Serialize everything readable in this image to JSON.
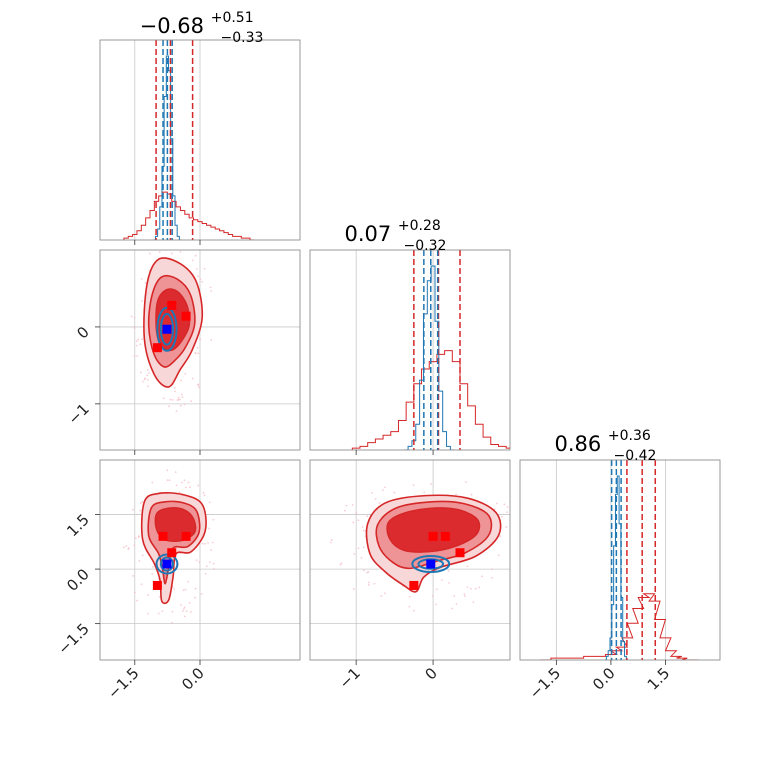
{
  "colors": {
    "red": "#d62728",
    "blue": "#1f77b4",
    "marker_red": "#ff0000",
    "marker_blue": "#0000ff",
    "red_levels": [
      "#f8d7d8",
      "#ee9496",
      "#dc2b2e"
    ]
  },
  "chart_data": {
    "type": "corner",
    "parameters": [
      {
        "title": {
          "main": "−0.68",
          "sup": "+0.51",
          "sub": "−0.33"
        },
        "range": [
          -2.3,
          2.3
        ],
        "ticks": [
          -1.5,
          0.0
        ],
        "tick_labels": [
          "−1.5",
          "0.0"
        ],
        "red_quantiles": [
          -1.01,
          -0.68,
          -0.17
        ],
        "blue_quantiles": [
          -0.85,
          -0.75,
          -0.64
        ],
        "red_hist": {
          "x": [
            -1.7,
            -1.6,
            -1.5,
            -1.4,
            -1.3,
            -1.2,
            -1.1,
            -1.0,
            -0.9,
            -0.8,
            -0.7,
            -0.6,
            -0.5,
            -0.4,
            -0.3,
            -0.2,
            -0.1,
            0.0,
            0.1,
            0.2,
            0.3,
            0.4,
            0.5,
            0.6,
            0.7,
            0.8,
            0.9,
            1.0,
            1.1,
            1.2
          ],
          "y": [
            0.01,
            0.02,
            0.03,
            0.05,
            0.08,
            0.12,
            0.16,
            0.21,
            0.24,
            0.26,
            0.25,
            0.21,
            0.18,
            0.16,
            0.14,
            0.12,
            0.11,
            0.1,
            0.09,
            0.08,
            0.07,
            0.06,
            0.05,
            0.04,
            0.03,
            0.02,
            0.02,
            0.01,
            0.01,
            0.0
          ]
        },
        "blue_hist": {
          "x": [
            -1.05,
            -1.0,
            -0.95,
            -0.9,
            -0.85,
            -0.8,
            -0.75,
            -0.7,
            -0.65,
            -0.6,
            -0.55,
            -0.5,
            -0.45
          ],
          "y": [
            0.0,
            0.02,
            0.06,
            0.18,
            0.4,
            0.78,
            1.0,
            0.92,
            0.55,
            0.24,
            0.08,
            0.02,
            0.0
          ]
        }
      },
      {
        "title": {
          "main": "0.07",
          "sup": "+0.28",
          "sub": "−0.32"
        },
        "range": [
          -1.6,
          1.0
        ],
        "ticks": [
          -1,
          0
        ],
        "tick_labels": [
          "−1",
          "0"
        ],
        "red_quantiles": [
          -0.25,
          0.07,
          0.35
        ],
        "blue_quantiles": [
          -0.12,
          -0.03,
          0.06
        ],
        "red_hist": {
          "x": [
            -1.0,
            -0.9,
            -0.8,
            -0.7,
            -0.6,
            -0.5,
            -0.4,
            -0.3,
            -0.2,
            -0.1,
            0.0,
            0.1,
            0.2,
            0.3,
            0.4,
            0.5,
            0.6,
            0.7,
            0.8,
            0.9,
            1.0
          ],
          "y": [
            0.01,
            0.02,
            0.04,
            0.06,
            0.08,
            0.1,
            0.16,
            0.26,
            0.36,
            0.44,
            0.48,
            0.52,
            0.54,
            0.48,
            0.36,
            0.24,
            0.14,
            0.07,
            0.03,
            0.02,
            0.01
          ]
        },
        "blue_hist": {
          "x": [
            -0.35,
            -0.3,
            -0.25,
            -0.2,
            -0.15,
            -0.1,
            -0.05,
            0.0,
            0.05,
            0.1,
            0.15,
            0.2,
            0.25
          ],
          "y": [
            0.0,
            0.02,
            0.05,
            0.14,
            0.38,
            0.74,
            0.92,
            1.0,
            0.7,
            0.32,
            0.1,
            0.02,
            0.0
          ]
        }
      },
      {
        "title": {
          "main": "0.86",
          "sup": "+0.36",
          "sub": "−0.42"
        },
        "range": [
          -2.5,
          3.0
        ],
        "ticks": [
          -1.5,
          0.0,
          1.5
        ],
        "tick_labels": [
          "−1.5",
          "0.0",
          "1.5"
        ],
        "red_quantiles": [
          0.44,
          0.86,
          1.22
        ],
        "blue_quantiles": [
          0.02,
          0.15,
          0.28
        ],
        "red_hist": {
          "x": [
            -1.8,
            -1.5,
            -1.2,
            -0.9,
            -0.6,
            -0.3,
            0.0,
            0.15,
            0.3,
            0.45,
            0.6,
            0.75,
            0.9,
            1.05,
            1.2,
            1.35,
            1.5,
            1.65,
            1.8,
            1.95,
            2.1,
            2.25
          ],
          "y": [
            0.0,
            0.01,
            0.01,
            0.01,
            0.02,
            0.02,
            0.03,
            0.05,
            0.07,
            0.12,
            0.2,
            0.28,
            0.34,
            0.36,
            0.32,
            0.22,
            0.12,
            0.05,
            0.02,
            0.01,
            0.0,
            0.0
          ]
        },
        "blue_hist": {
          "x": [
            -0.15,
            -0.1,
            -0.05,
            0.0,
            0.05,
            0.1,
            0.15,
            0.2,
            0.25,
            0.3,
            0.35,
            0.4,
            0.45
          ],
          "y": [
            0.0,
            0.02,
            0.05,
            0.12,
            0.3,
            0.62,
            0.9,
            1.0,
            0.74,
            0.34,
            0.1,
            0.02,
            0.0
          ]
        }
      }
    ],
    "pairs": [
      {
        "x_param": 0,
        "y_param": 1,
        "red_level_paths": [
          [
            [
              -1.22,
              0.55
            ],
            [
              -0.95,
              0.88
            ],
            [
              -0.45,
              0.82
            ],
            [
              -0.08,
              0.58
            ],
            [
              0.05,
              0.12
            ],
            [
              -0.18,
              -0.3
            ],
            [
              -0.45,
              -0.55
            ],
            [
              -0.72,
              -0.78
            ],
            [
              -1.05,
              -0.62
            ],
            [
              -1.28,
              -0.15
            ]
          ],
          [
            [
              -1.1,
              0.42
            ],
            [
              -0.88,
              0.65
            ],
            [
              -0.52,
              0.62
            ],
            [
              -0.22,
              0.42
            ],
            [
              -0.12,
              0.05
            ],
            [
              -0.32,
              -0.25
            ],
            [
              -0.55,
              -0.42
            ],
            [
              -0.82,
              -0.52
            ],
            [
              -1.06,
              -0.35
            ],
            [
              -1.18,
              0.02
            ]
          ],
          [
            [
              -0.98,
              0.32
            ],
            [
              -0.78,
              0.48
            ],
            [
              -0.52,
              0.46
            ],
            [
              -0.3,
              0.28
            ],
            [
              -0.25,
              0.02
            ],
            [
              -0.42,
              -0.18
            ],
            [
              -0.64,
              -0.3
            ],
            [
              -0.88,
              -0.26
            ],
            [
              -1.0,
              -0.05
            ]
          ]
        ],
        "blue_ellipses": [
          {
            "cx": -0.76,
            "cy": -0.03,
            "rx": 0.14,
            "ry": 0.2
          },
          {
            "cx": -0.76,
            "cy": -0.03,
            "rx": 0.22,
            "ry": 0.28
          }
        ],
        "red_markers": [
          [
            -0.65,
            0.28
          ],
          [
            -0.32,
            0.14
          ],
          [
            -0.98,
            -0.27
          ]
        ],
        "blue_marker": [
          -0.76,
          -0.03
        ]
      },
      {
        "x_param": 0,
        "y_param": 2,
        "red_level_paths": [
          [
            [
              -1.28,
              1.85
            ],
            [
              -0.95,
              2.08
            ],
            [
              -0.4,
              2.05
            ],
            [
              0.05,
              1.78
            ],
            [
              0.12,
              1.05
            ],
            [
              -0.2,
              0.48
            ],
            [
              -0.55,
              0.42
            ],
            [
              -0.62,
              -0.22
            ],
            [
              -0.72,
              -0.85
            ],
            [
              -0.88,
              -0.88
            ],
            [
              -0.92,
              -0.3
            ],
            [
              -1.05,
              0.15
            ],
            [
              -1.32,
              0.82
            ]
          ],
          [
            [
              -1.12,
              1.68
            ],
            [
              -0.8,
              1.85
            ],
            [
              -0.38,
              1.82
            ],
            [
              -0.08,
              1.6
            ],
            [
              -0.02,
              1.02
            ],
            [
              -0.28,
              0.62
            ],
            [
              -0.62,
              0.58
            ],
            [
              -0.72,
              0.05
            ],
            [
              -0.8,
              -0.4
            ],
            [
              -0.86,
              -0.02
            ],
            [
              -0.95,
              0.42
            ],
            [
              -1.18,
              0.92
            ]
          ],
          [
            [
              -0.98,
              1.55
            ],
            [
              -0.68,
              1.68
            ],
            [
              -0.35,
              1.62
            ],
            [
              -0.15,
              1.38
            ],
            [
              -0.12,
              1.02
            ],
            [
              -0.38,
              0.8
            ],
            [
              -0.72,
              0.78
            ],
            [
              -0.92,
              0.92
            ],
            [
              -1.02,
              1.22
            ]
          ]
        ],
        "blue_ellipses": [
          {
            "cx": -0.76,
            "cy": 0.14,
            "rx": 0.14,
            "ry": 0.18
          },
          {
            "cx": -0.76,
            "cy": 0.14,
            "rx": 0.24,
            "ry": 0.26
          }
        ],
        "red_markers": [
          [
            -0.85,
            0.9
          ],
          [
            -0.32,
            0.9
          ],
          [
            -0.65,
            0.45
          ],
          [
            -0.98,
            -0.45
          ]
        ],
        "blue_marker": [
          -0.76,
          0.14
        ]
      },
      {
        "x_param": 1,
        "y_param": 2,
        "red_level_paths": [
          [
            [
              -0.85,
              1.25
            ],
            [
              -0.62,
              1.82
            ],
            [
              -0.1,
              2.02
            ],
            [
              0.45,
              1.95
            ],
            [
              0.82,
              1.55
            ],
            [
              0.85,
              0.92
            ],
            [
              0.55,
              0.35
            ],
            [
              0.1,
              0.05
            ],
            [
              -0.12,
              -0.22
            ],
            [
              -0.22,
              -0.62
            ],
            [
              -0.38,
              -0.45
            ],
            [
              -0.62,
              -0.08
            ],
            [
              -0.82,
              0.42
            ]
          ],
          [
            [
              -0.72,
              1.22
            ],
            [
              -0.48,
              1.68
            ],
            [
              -0.02,
              1.85
            ],
            [
              0.4,
              1.8
            ],
            [
              0.72,
              1.48
            ],
            [
              0.72,
              0.92
            ],
            [
              0.42,
              0.45
            ],
            [
              0.05,
              0.22
            ],
            [
              -0.3,
              0.02
            ],
            [
              -0.52,
              0.18
            ],
            [
              -0.7,
              0.62
            ]
          ],
          [
            [
              -0.58,
              1.28
            ],
            [
              -0.36,
              1.55
            ],
            [
              0.02,
              1.68
            ],
            [
              0.35,
              1.62
            ],
            [
              0.58,
              1.35
            ],
            [
              0.56,
              0.95
            ],
            [
              0.28,
              0.62
            ],
            [
              -0.05,
              0.48
            ],
            [
              -0.38,
              0.52
            ],
            [
              -0.56,
              0.82
            ]
          ]
        ],
        "blue_ellipses": [
          {
            "cx": -0.03,
            "cy": 0.14,
            "rx": 0.16,
            "ry": 0.13
          },
          {
            "cx": -0.03,
            "cy": 0.14,
            "rx": 0.24,
            "ry": 0.22
          }
        ],
        "red_markers": [
          [
            0.0,
            0.9
          ],
          [
            0.16,
            0.9
          ],
          [
            0.35,
            0.45
          ],
          [
            -0.25,
            -0.45
          ]
        ],
        "blue_marker": [
          -0.03,
          0.14
        ]
      }
    ]
  }
}
